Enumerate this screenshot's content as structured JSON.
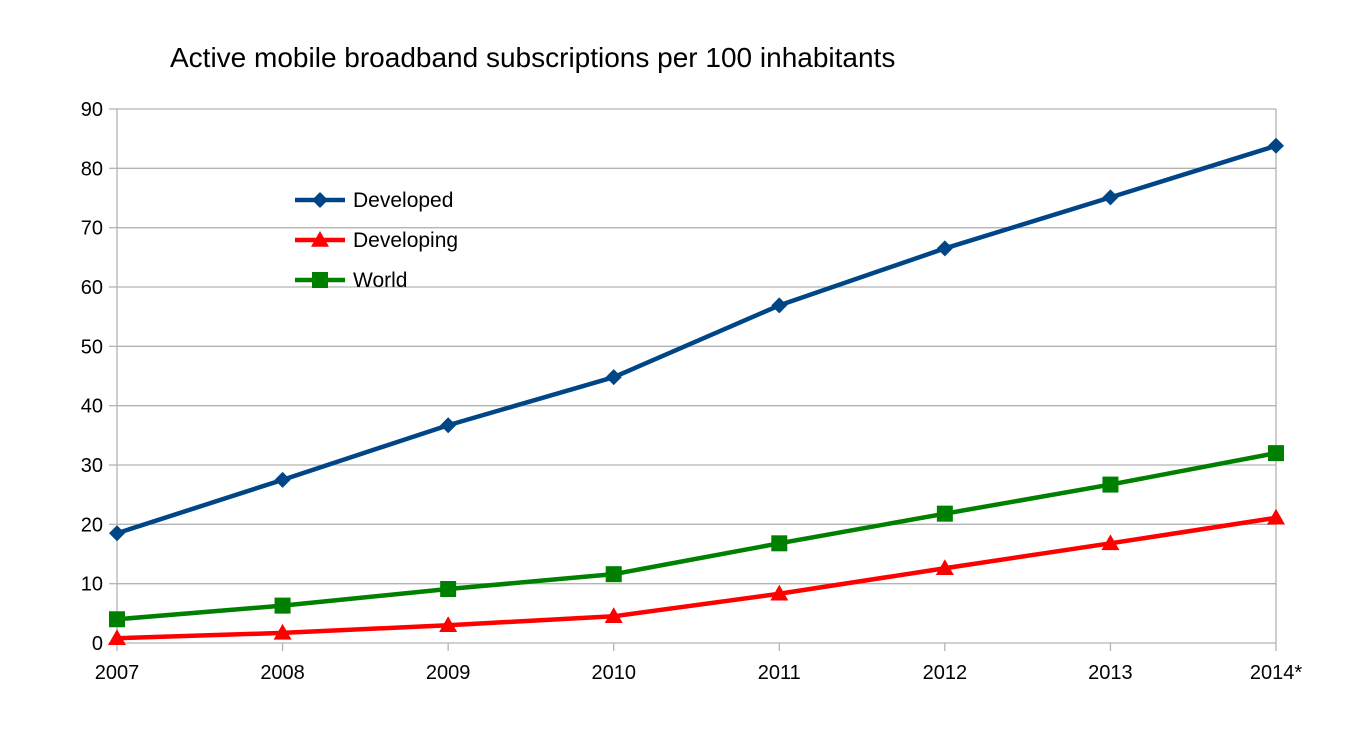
{
  "chart_data": {
    "type": "line",
    "title": "Active mobile broadband subscriptions per 100 inhabitants",
    "xlabel": "",
    "ylabel": "",
    "categories": [
      "2007",
      "2008",
      "2009",
      "2010",
      "2011",
      "2012",
      "2013",
      "2014*"
    ],
    "ylim": [
      0,
      90
    ],
    "yticks": [
      0,
      10,
      20,
      30,
      40,
      50,
      60,
      70,
      80,
      90
    ],
    "grid": true,
    "legend_position": "upper-left inside plot",
    "series": [
      {
        "name": "Developed",
        "color": "#004586",
        "marker": "diamond",
        "values": [
          18.5,
          27.5,
          36.7,
          44.8,
          56.9,
          66.5,
          75.1,
          83.8
        ]
      },
      {
        "name": "Developing",
        "color": "#ff0000",
        "marker": "triangle",
        "values": [
          0.8,
          1.7,
          3.0,
          4.5,
          8.3,
          12.6,
          16.8,
          21.1
        ]
      },
      {
        "name": "World",
        "color": "#008000",
        "marker": "square",
        "values": [
          4.0,
          6.3,
          9.1,
          11.6,
          16.8,
          21.8,
          26.7,
          32.0
        ]
      }
    ]
  }
}
